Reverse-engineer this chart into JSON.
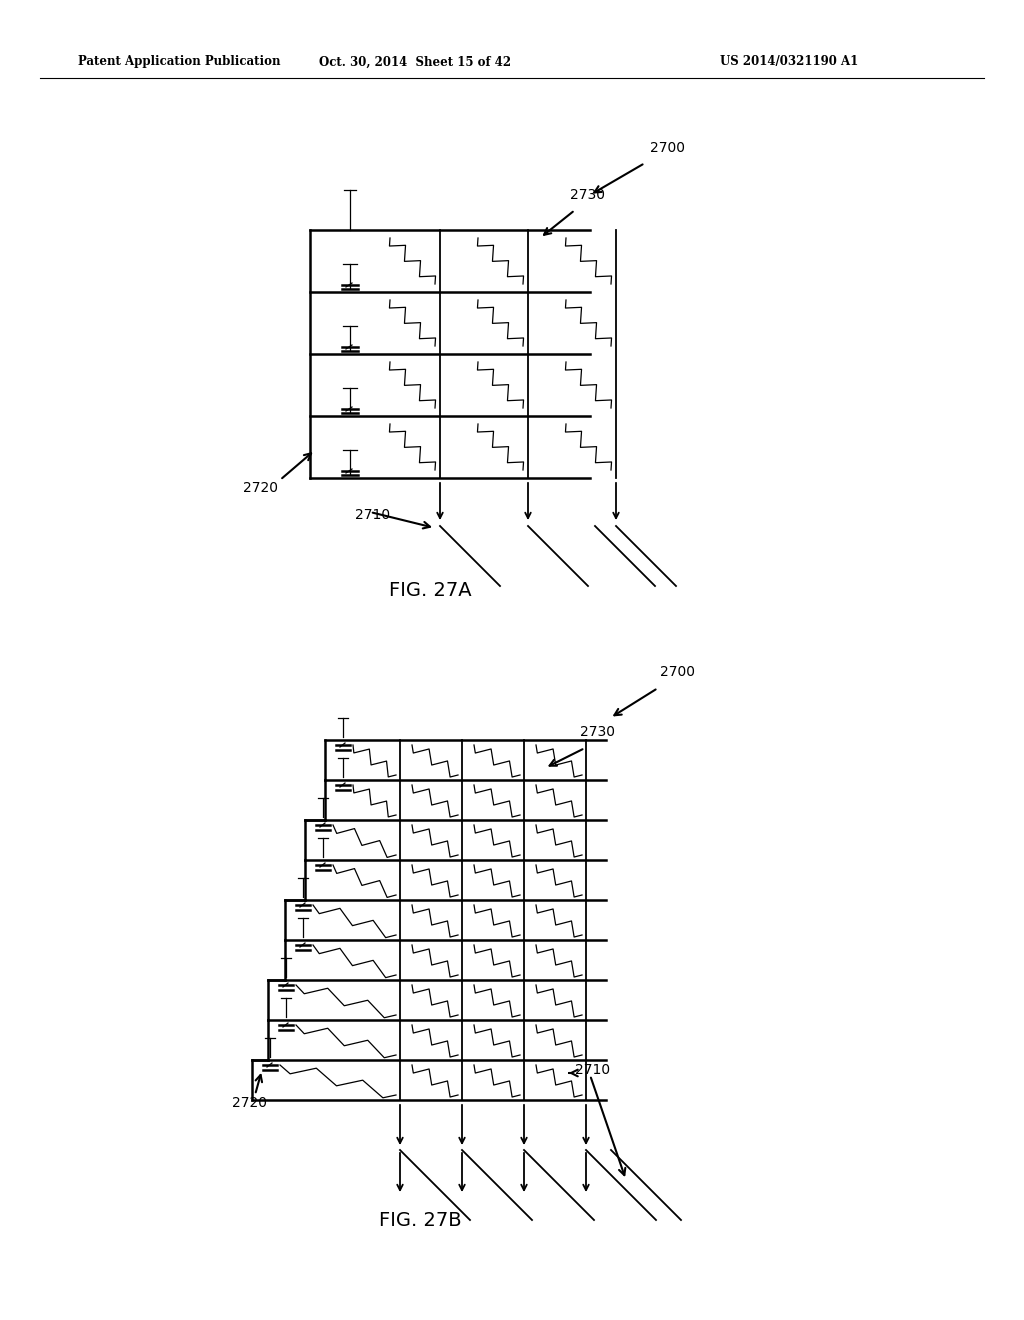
{
  "fig_title_a": "FIG. 27A",
  "fig_title_b": "FIG. 27B",
  "header_left": "Patent Application Publication",
  "header_mid": "Oct. 30, 2014  Sheet 15 of 42",
  "header_right": "US 2014/0321190 A1",
  "label_2700": "2700",
  "label_2730": "2730",
  "label_2720": "2720",
  "label_2710": "2710",
  "bg_color": "#ffffff",
  "line_color": "#000000"
}
